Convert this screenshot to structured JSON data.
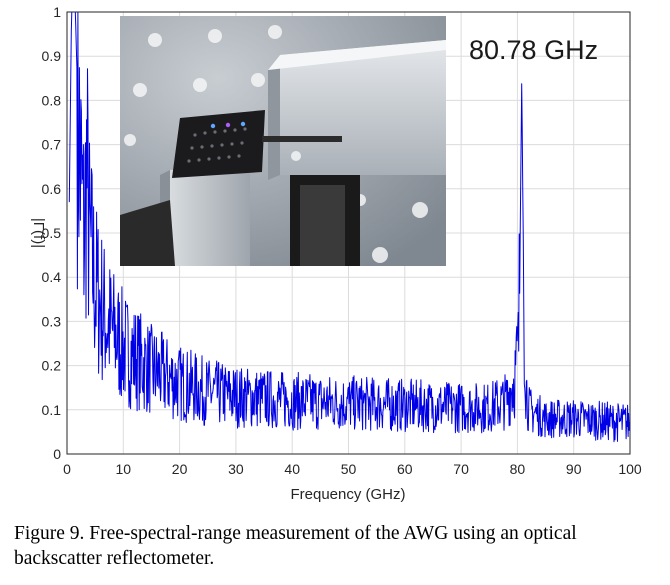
{
  "chart_data": {
    "type": "line",
    "xlabel": "Frequency (GHz)",
    "ylabel": "|Γ(f)|",
    "xlim": [
      0,
      100
    ],
    "ylim": [
      0,
      1
    ],
    "x_ticks": [
      0,
      10,
      20,
      30,
      40,
      50,
      60,
      70,
      80,
      90,
      100
    ],
    "y_ticks": [
      0,
      0.1,
      0.2,
      0.3,
      0.4,
      0.5,
      0.6,
      0.7,
      0.8,
      0.9,
      1
    ],
    "grid": true,
    "line_color": "#0000e6",
    "annotations": [
      {
        "text": "80.78 GHz",
        "x": 80.78,
        "y": 0.85
      }
    ],
    "series": [
      {
        "x": [
          0.4,
          0.8,
          1.1,
          1.5,
          2,
          2.5,
          3,
          3.5,
          4,
          5,
          6,
          7,
          8,
          9,
          10,
          12,
          15,
          20,
          25,
          30,
          35,
          40,
          50,
          60,
          70,
          75,
          78,
          79.5,
          80.2,
          80.5,
          80.78,
          81.1,
          81.5,
          82,
          85,
          90,
          95,
          100
        ],
        "y": [
          0.57,
          1.0,
          1.0,
          1.0,
          0.75,
          0.62,
          0.5,
          0.64,
          0.48,
          0.38,
          0.34,
          0.3,
          0.28,
          0.26,
          0.24,
          0.22,
          0.19,
          0.16,
          0.14,
          0.13,
          0.125,
          0.12,
          0.115,
          0.11,
          0.105,
          0.105,
          0.12,
          0.17,
          0.24,
          0.5,
          0.85,
          0.4,
          0.16,
          0.1,
          0.08,
          0.08,
          0.075,
          0.07
        ]
      }
    ]
  },
  "inset_photo": {
    "description_icon": "awg-chip-photo-icon"
  },
  "caption": {
    "text": "Figure 9.  Free-spectral-range measurement of the AWG using an optical backscatter reflectometer."
  }
}
